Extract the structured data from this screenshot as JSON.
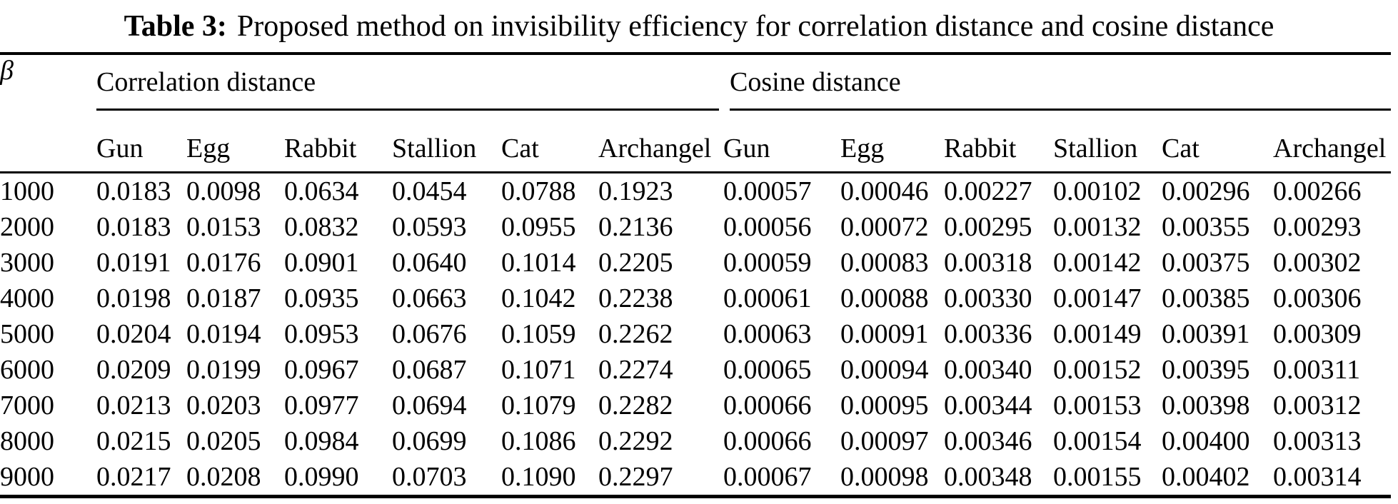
{
  "title": {
    "label": "Table 3:",
    "text": "Proposed method on invisibility efficiency for correlation distance and cosine distance"
  },
  "table": {
    "beta_symbol": "β",
    "groups": [
      {
        "label": "Correlation distance",
        "columns": [
          "Gun",
          "Egg",
          "Rabbit",
          "Stallion",
          "Cat",
          "Archangel"
        ]
      },
      {
        "label": "Cosine distance",
        "columns": [
          "Gun",
          "Egg",
          "Rabbit",
          "Stallion",
          "Cat",
          "Archangel"
        ]
      }
    ],
    "rows": [
      {
        "beta": "1000",
        "correlation": [
          "0.0183",
          "0.0098",
          "0.0634",
          "0.0454",
          "0.0788",
          "0.1923"
        ],
        "cosine": [
          "0.00057",
          "0.00046",
          "0.00227",
          "0.00102",
          "0.00296",
          "0.00266"
        ]
      },
      {
        "beta": "2000",
        "correlation": [
          "0.0183",
          "0.0153",
          "0.0832",
          "0.0593",
          "0.0955",
          "0.2136"
        ],
        "cosine": [
          "0.00056",
          "0.00072",
          "0.00295",
          "0.00132",
          "0.00355",
          "0.00293"
        ]
      },
      {
        "beta": "3000",
        "correlation": [
          "0.0191",
          "0.0176",
          "0.0901",
          "0.0640",
          "0.1014",
          "0.2205"
        ],
        "cosine": [
          "0.00059",
          "0.00083",
          "0.00318",
          "0.00142",
          "0.00375",
          "0.00302"
        ]
      },
      {
        "beta": "4000",
        "correlation": [
          "0.0198",
          "0.0187",
          "0.0935",
          "0.0663",
          "0.1042",
          "0.2238"
        ],
        "cosine": [
          "0.00061",
          "0.00088",
          "0.00330",
          "0.00147",
          "0.00385",
          "0.00306"
        ]
      },
      {
        "beta": "5000",
        "correlation": [
          "0.0204",
          "0.0194",
          "0.0953",
          "0.0676",
          "0.1059",
          "0.2262"
        ],
        "cosine": [
          "0.00063",
          "0.00091",
          "0.00336",
          "0.00149",
          "0.00391",
          "0.00309"
        ]
      },
      {
        "beta": "6000",
        "correlation": [
          "0.0209",
          "0.0199",
          "0.0967",
          "0.0687",
          "0.1071",
          "0.2274"
        ],
        "cosine": [
          "0.00065",
          "0.00094",
          "0.00340",
          "0.00152",
          "0.00395",
          "0.00311"
        ]
      },
      {
        "beta": "7000",
        "correlation": [
          "0.0213",
          "0.0203",
          "0.0977",
          "0.0694",
          "0.1079",
          "0.2282"
        ],
        "cosine": [
          "0.00066",
          "0.00095",
          "0.00344",
          "0.00153",
          "0.00398",
          "0.00312"
        ]
      },
      {
        "beta": "8000",
        "correlation": [
          "0.0215",
          "0.0205",
          "0.0984",
          "0.0699",
          "0.1086",
          "0.2292"
        ],
        "cosine": [
          "0.00066",
          "0.00097",
          "0.00346",
          "0.00154",
          "0.00400",
          "0.00313"
        ]
      },
      {
        "beta": "9000",
        "correlation": [
          "0.0217",
          "0.0208",
          "0.0990",
          "0.0703",
          "0.1090",
          "0.2297"
        ],
        "cosine": [
          "0.00067",
          "0.00098",
          "0.00348",
          "0.00155",
          "0.00402",
          "0.00314"
        ]
      }
    ]
  },
  "colors": {
    "text": "#000000",
    "background": "#ffffff",
    "rule": "#000000"
  }
}
